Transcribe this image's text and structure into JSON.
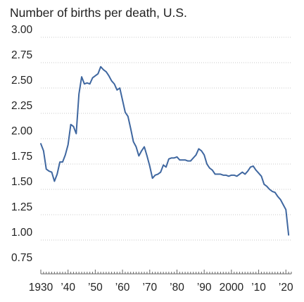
{
  "chart_data": {
    "type": "line",
    "title": "Number of births per death, U.S.",
    "xlabel": "",
    "ylabel": "",
    "xlim": [
      1930,
      2022
    ],
    "ylim": [
      0.75,
      3.0
    ],
    "grid": true,
    "yticks": [
      0.75,
      1.0,
      1.25,
      1.5,
      1.75,
      2.0,
      2.25,
      2.5,
      2.75,
      3.0
    ],
    "ytick_labels": [
      "0.75",
      "1.00",
      "1.25",
      "1.50",
      "1.75",
      "2.00",
      "2.25",
      "2.50",
      "2.75",
      "3.00"
    ],
    "xticks": [
      1930,
      1940,
      1950,
      1960,
      1970,
      1980,
      1990,
      2000,
      2010,
      2020
    ],
    "xtick_labels": [
      "1930",
      "’40",
      "’50",
      "’60",
      "’70",
      "’80",
      "’90",
      "2000",
      "’10",
      "’20"
    ],
    "colors": {
      "line": "#3f67a0",
      "grid": "#c8c8c8",
      "axis": "#666666"
    },
    "series": [
      {
        "x": [
          1930,
          1931,
          1932,
          1933,
          1934,
          1935,
          1936,
          1937,
          1938,
          1939,
          1940,
          1941,
          1942,
          1943,
          1944,
          1945,
          1946,
          1947,
          1948,
          1949,
          1950,
          1951,
          1952,
          1953,
          1954,
          1955,
          1956,
          1957,
          1958,
          1959,
          1960,
          1961,
          1962,
          1963,
          1964,
          1965,
          1966,
          1967,
          1968,
          1969,
          1970,
          1971,
          1972,
          1973,
          1974,
          1975,
          1976,
          1977,
          1978,
          1979,
          1980,
          1981,
          1982,
          1983,
          1984,
          1985,
          1986,
          1987,
          1988,
          1989,
          1990,
          1991,
          1992,
          1993,
          1994,
          1995,
          1996,
          1997,
          1998,
          1999,
          2000,
          2001,
          2002,
          2003,
          2004,
          2005,
          2006,
          2007,
          2008,
          2009,
          2010,
          2011,
          2012,
          2013,
          2014,
          2015,
          2016,
          2017,
          2018,
          2019,
          2020,
          2021
        ],
        "y": [
          1.95,
          1.88,
          1.7,
          1.68,
          1.67,
          1.58,
          1.65,
          1.77,
          1.77,
          1.84,
          1.94,
          2.14,
          2.12,
          2.05,
          2.44,
          2.61,
          2.54,
          2.55,
          2.54,
          2.6,
          2.62,
          2.64,
          2.71,
          2.68,
          2.66,
          2.62,
          2.57,
          2.54,
          2.48,
          2.5,
          2.38,
          2.26,
          2.22,
          2.1,
          1.97,
          1.92,
          1.83,
          1.88,
          1.92,
          1.83,
          1.73,
          1.61,
          1.64,
          1.65,
          1.67,
          1.74,
          1.72,
          1.8,
          1.81,
          1.81,
          1.82,
          1.79,
          1.79,
          1.79,
          1.78,
          1.78,
          1.81,
          1.84,
          1.9,
          1.88,
          1.84,
          1.75,
          1.71,
          1.69,
          1.65,
          1.65,
          1.65,
          1.64,
          1.64,
          1.63,
          1.64,
          1.64,
          1.63,
          1.65,
          1.67,
          1.65,
          1.68,
          1.72,
          1.73,
          1.69,
          1.66,
          1.63,
          1.55,
          1.53,
          1.5,
          1.48,
          1.47,
          1.43,
          1.4,
          1.35,
          1.3,
          1.05
        ]
      }
    ]
  }
}
